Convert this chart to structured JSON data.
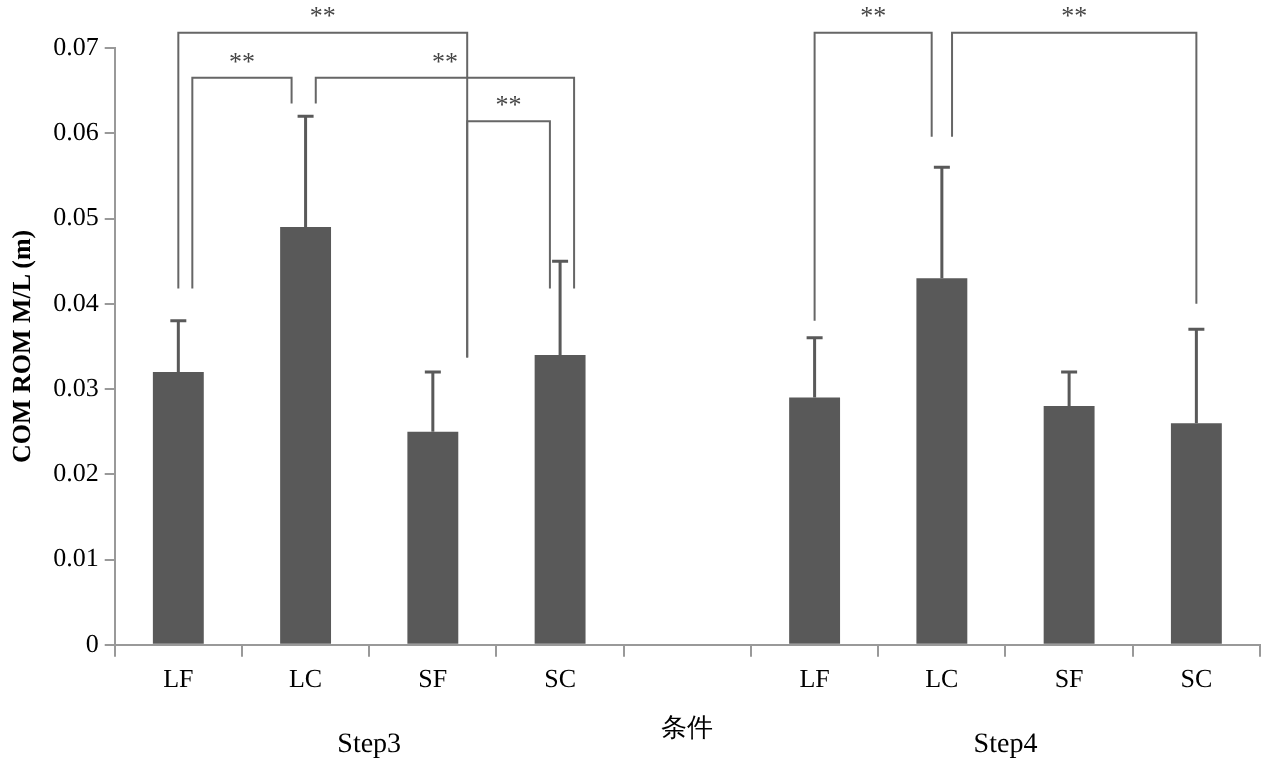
{
  "chart_data": {
    "type": "bar",
    "xlabel": "条件",
    "ylabel": "COM ROM M/L (m)",
    "categories": [
      "LF",
      "LC",
      "SF",
      "SC",
      null,
      "LF",
      "LC",
      "SF",
      "SC"
    ],
    "values": [
      0.032,
      0.049,
      0.025,
      0.034,
      null,
      0.029,
      0.043,
      0.028,
      0.026
    ],
    "errors": [
      [
        0.032,
        0.038
      ],
      [
        0.049,
        0.062
      ],
      [
        0.025,
        0.032
      ],
      [
        0.034,
        0.045
      ],
      null,
      [
        0.029,
        0.036
      ],
      [
        0.043,
        0.056
      ],
      [
        0.028,
        0.032
      ],
      [
        0.026,
        0.037
      ]
    ],
    "color": "#595959",
    "ylim": [
      0,
      0.07
    ],
    "yticks": [
      0,
      0.01,
      0.02,
      0.03,
      0.04,
      0.05,
      0.06,
      0.07
    ],
    "annotations": [
      "**",
      "**",
      "**",
      "**",
      "**",
      "**",
      "Step3",
      "Step4"
    ],
    "grid": false,
    "legend": false
  }
}
